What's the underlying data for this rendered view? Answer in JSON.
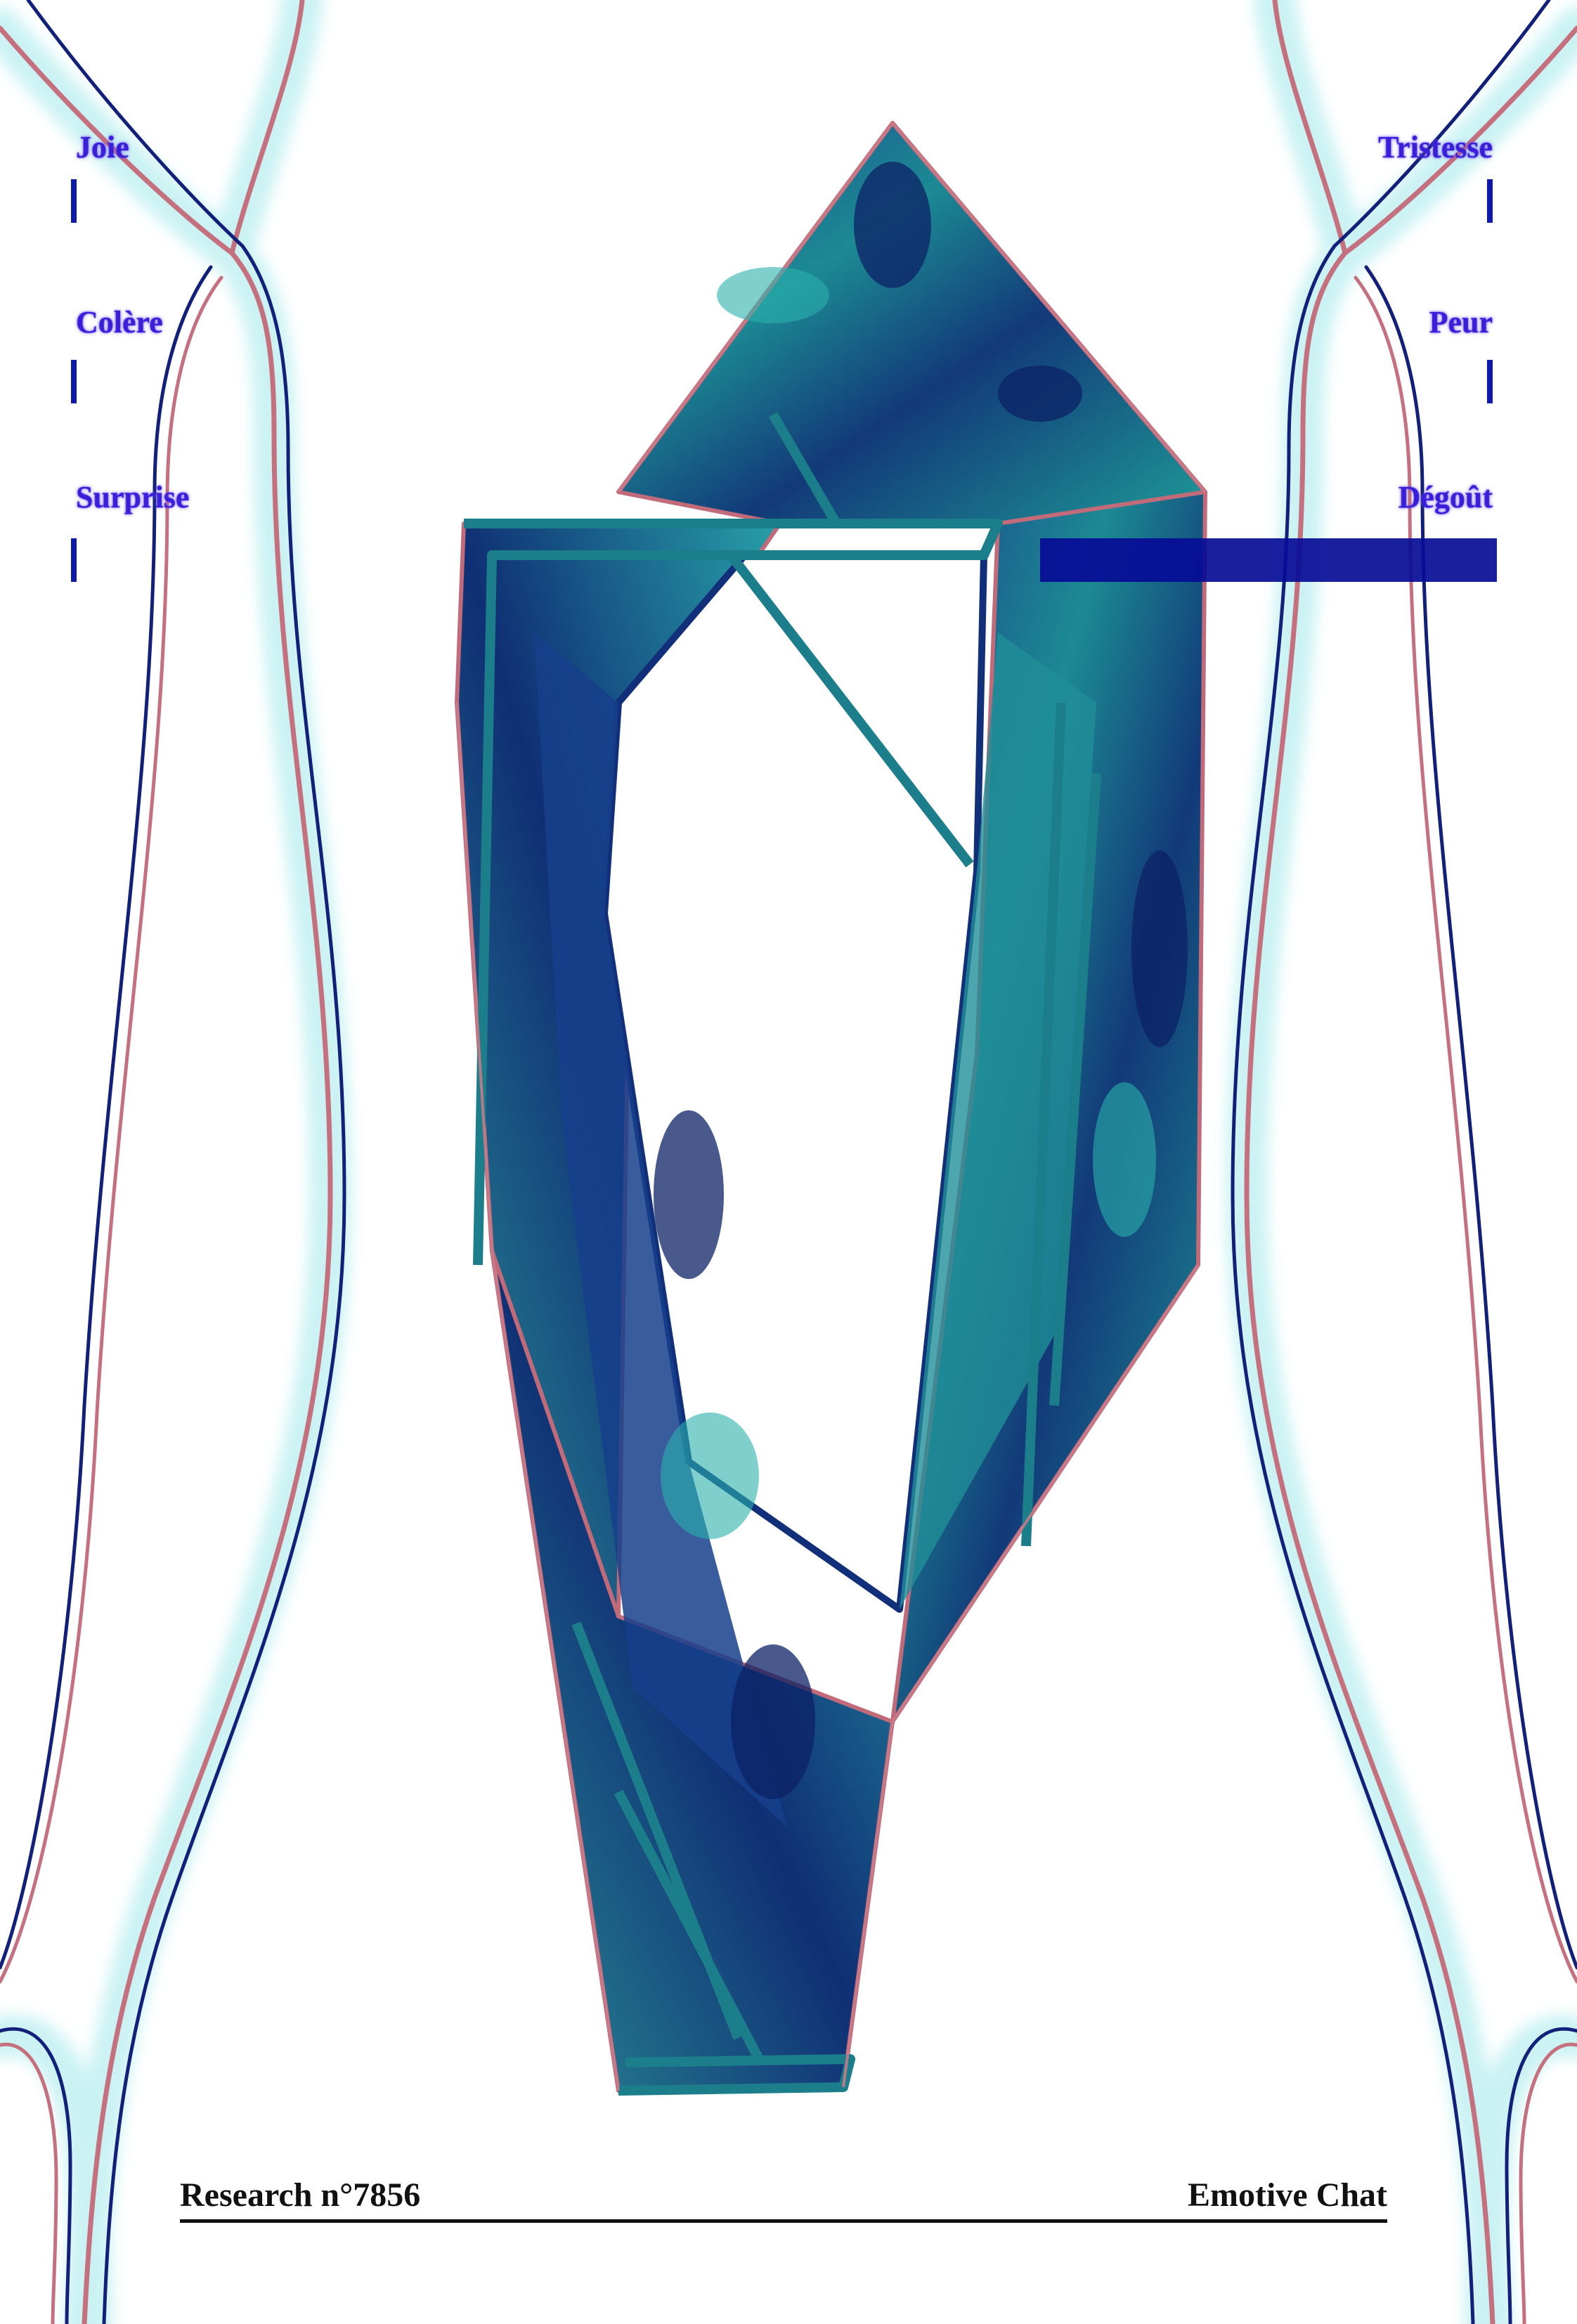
{
  "emotions": {
    "left": [
      {
        "label": "Joie"
      },
      {
        "label": "Colère"
      },
      {
        "label": "Surprise"
      }
    ],
    "right": [
      {
        "label": "Tristesse"
      },
      {
        "label": "Peur"
      },
      {
        "label": "Dégoût",
        "selected": true
      }
    ]
  },
  "footer": {
    "left": "Research n°7856",
    "right": "Emotive Chat"
  },
  "colors": {
    "label": "#3a1fd8",
    "selection_bar": "#060c96",
    "crystal_dark": "#0e2a6e",
    "crystal_teal": "#1c8a94",
    "crystal_edge": "#c06a7a",
    "background": "#ffffff"
  },
  "icons": [
    "crystal-illustration",
    "flowing-line-pattern"
  ]
}
